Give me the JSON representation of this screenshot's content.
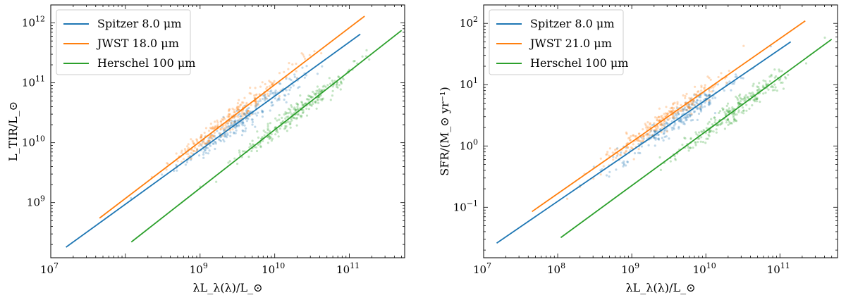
{
  "chart_data": [
    {
      "type": "scatter",
      "panel": "left",
      "xlabel": "λL_λ(λ)/L_⊙",
      "ylabel": "L_TIR/L_⊙",
      "xscale": "log",
      "yscale": "log",
      "xlim": [
        10000000.0,
        550000000000.0
      ],
      "ylim": [
        120000000.0,
        2000000000000.0
      ],
      "x_ticks": [
        {
          "value": 10000000.0,
          "base": "10",
          "exp": "7"
        },
        {
          "value": 1000000000.0,
          "base": "10",
          "exp": "9"
        },
        {
          "value": 10000000000.0,
          "base": "10",
          "exp": "10"
        },
        {
          "value": 100000000000.0,
          "base": "10",
          "exp": "11"
        }
      ],
      "y_ticks": [
        {
          "value": 1000000000.0,
          "base": "10",
          "exp": "9"
        },
        {
          "value": 10000000000.0,
          "base": "10",
          "exp": "10"
        },
        {
          "value": 100000000000.0,
          "base": "10",
          "exp": "11"
        },
        {
          "value": 1000000000000.0,
          "base": "10",
          "exp": "12"
        }
      ],
      "legend_position": "top-left",
      "series": [
        {
          "name": "Spitzer 8.0 μm",
          "color": "#1f77b4",
          "fit": {
            "x": [
              16000000.0,
              140000000000.0
            ],
            "y": [
              180000000.0,
              650000000000.0
            ]
          },
          "cloud": {
            "center_x": 3500000000.0,
            "center_y": 20000000000.0,
            "count": 260
          }
        },
        {
          "name": "JWST 18.0 μm",
          "color": "#ff7f0e",
          "fit": {
            "x": [
              45000000.0,
              160000000000.0
            ],
            "y": [
              550000000.0,
              1300000000000.0
            ]
          },
          "cloud": {
            "center_x": 2500000000.0,
            "center_y": 30000000000.0,
            "count": 260
          }
        },
        {
          "name": "Herschel 100 μm",
          "color": "#2ca02c",
          "fit": {
            "x": [
              120000000.0,
              500000000000.0
            ],
            "y": [
              220000000.0,
              750000000000.0
            ]
          },
          "cloud": {
            "center_x": 20000000000.0,
            "center_y": 20000000000.0,
            "count": 260
          }
        }
      ]
    },
    {
      "type": "scatter",
      "panel": "right",
      "xlabel": "λL_λ(λ)/L_⊙",
      "ylabel": "SFR/(M_⊙ yr⁻¹)",
      "xscale": "log",
      "yscale": "log",
      "xlim": [
        10000000.0,
        600000000000.0
      ],
      "ylim": [
        0.015,
        200
      ],
      "x_ticks": [
        {
          "value": 10000000.0,
          "base": "10",
          "exp": "7"
        },
        {
          "value": 100000000.0,
          "base": "10",
          "exp": "8"
        },
        {
          "value": 1000000000.0,
          "base": "10",
          "exp": "9"
        },
        {
          "value": 10000000000.0,
          "base": "10",
          "exp": "10"
        },
        {
          "value": 100000000000.0,
          "base": "10",
          "exp": "11"
        }
      ],
      "y_ticks": [
        {
          "value": 0.1,
          "base": "10",
          "exp": "−1"
        },
        {
          "value": 1,
          "base": "10",
          "exp": "0"
        },
        {
          "value": 10,
          "base": "10",
          "exp": "1"
        },
        {
          "value": 100,
          "base": "10",
          "exp": "2"
        }
      ],
      "legend_position": "top-left",
      "series": [
        {
          "name": "Spitzer 8.0 μm",
          "color": "#1f77b4",
          "fit": {
            "x": [
              15000000.0,
              140000000000.0
            ],
            "y": [
              0.026,
              50
            ]
          },
          "cloud": {
            "center_x": 4000000000.0,
            "center_y": 4.0,
            "count": 260
          }
        },
        {
          "name": "JWST 21.0 μm",
          "color": "#ff7f0e",
          "fit": {
            "x": [
              45000000.0,
              220000000000.0
            ],
            "y": [
              0.085,
              110
            ]
          },
          "cloud": {
            "center_x": 2500000000.0,
            "center_y": 4.0,
            "count": 260
          }
        },
        {
          "name": "Herschel 100 μm",
          "color": "#2ca02c",
          "fit": {
            "x": [
              110000000.0,
              500000000000.0
            ],
            "y": [
              0.032,
              55
            ]
          },
          "cloud": {
            "center_x": 25000000000.0,
            "center_y": 4.0,
            "count": 260
          }
        }
      ]
    }
  ]
}
